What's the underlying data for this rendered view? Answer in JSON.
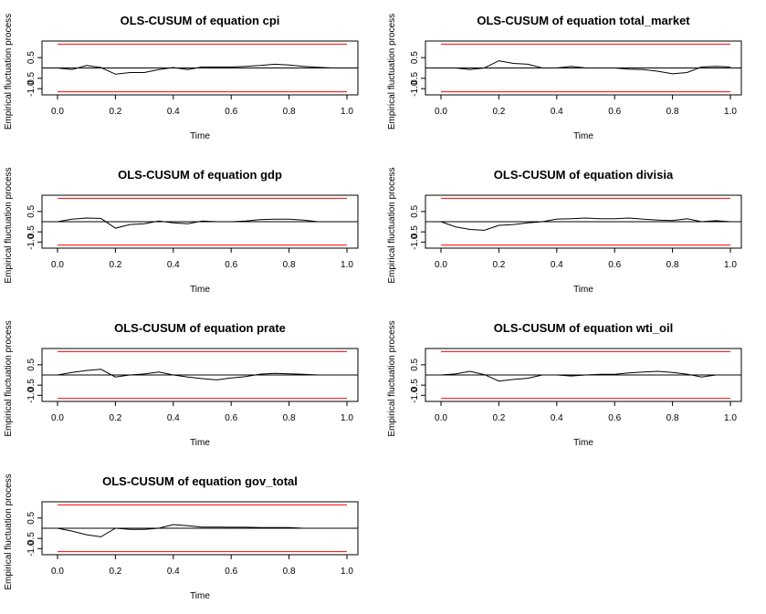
{
  "chart_data": [
    {
      "type": "line",
      "title": "OLS-CUSUM of equation cpi",
      "xlabel": "Time",
      "ylabel": "Empirical fluctuation process",
      "xlim": [
        0,
        1
      ],
      "ylim": [
        -1.3,
        1.3
      ],
      "xticks": [
        "0.0",
        "0.2",
        "0.4",
        "0.6",
        "0.8",
        "1.0"
      ],
      "yticks": [
        "-1.0",
        "0.5",
        "0.5"
      ],
      "boundary": 1.15,
      "x": [
        0.0,
        0.05,
        0.1,
        0.15,
        0.2,
        0.25,
        0.3,
        0.35,
        0.4,
        0.45,
        0.5,
        0.55,
        0.6,
        0.65,
        0.7,
        0.75,
        0.8,
        0.85,
        0.9,
        0.95,
        1.0
      ],
      "y": [
        0.0,
        -0.08,
        0.12,
        0.02,
        -0.3,
        -0.22,
        -0.22,
        -0.08,
        0.02,
        -0.08,
        0.05,
        0.05,
        0.05,
        0.08,
        0.12,
        0.18,
        0.14,
        0.08,
        0.03,
        0.0,
        0.0
      ]
    },
    {
      "type": "line",
      "title": "OLS-CUSUM of equation total_market",
      "xlabel": "Time",
      "ylabel": "Empirical fluctuation process",
      "xlim": [
        0,
        1
      ],
      "ylim": [
        -1.3,
        1.3
      ],
      "xticks": [
        "0.0",
        "0.2",
        "0.4",
        "0.6",
        "0.8",
        "1.0"
      ],
      "yticks": [
        "-1.0",
        "0.5",
        "0.5"
      ],
      "boundary": 1.15,
      "x": [
        0.0,
        0.05,
        0.1,
        0.15,
        0.2,
        0.25,
        0.3,
        0.35,
        0.4,
        0.45,
        0.5,
        0.55,
        0.6,
        0.65,
        0.7,
        0.75,
        0.8,
        0.85,
        0.9,
        0.95,
        1.0
      ],
      "y": [
        0.0,
        0.0,
        -0.08,
        0.0,
        0.35,
        0.22,
        0.18,
        0.0,
        0.0,
        0.08,
        0.0,
        0.0,
        0.0,
        -0.06,
        -0.08,
        -0.16,
        -0.28,
        -0.22,
        0.05,
        0.08,
        0.05
      ]
    },
    {
      "type": "line",
      "title": "OLS-CUSUM of equation gdp",
      "xlabel": "Time",
      "ylabel": "Empirical fluctuation process",
      "xlim": [
        0,
        1
      ],
      "ylim": [
        -1.3,
        1.3
      ],
      "xticks": [
        "0.0",
        "0.2",
        "0.4",
        "0.6",
        "0.8",
        "1.0"
      ],
      "yticks": [
        "-1.0",
        "0.5",
        "0.5"
      ],
      "boundary": 1.15,
      "x": [
        0.0,
        0.05,
        0.1,
        0.15,
        0.2,
        0.25,
        0.3,
        0.35,
        0.4,
        0.45,
        0.5,
        0.55,
        0.6,
        0.65,
        0.7,
        0.75,
        0.8,
        0.85,
        0.9,
        0.95,
        1.0
      ],
      "y": [
        0.0,
        0.12,
        0.18,
        0.16,
        -0.32,
        -0.14,
        -0.1,
        0.03,
        -0.06,
        -0.1,
        0.03,
        0.0,
        0.0,
        0.03,
        0.1,
        0.12,
        0.12,
        0.08,
        0.0,
        0.0,
        0.0
      ]
    },
    {
      "type": "line",
      "title": "OLS-CUSUM of equation divisia",
      "xlabel": "Time",
      "ylabel": "Empirical fluctuation process",
      "xlim": [
        0,
        1
      ],
      "ylim": [
        -1.3,
        1.3
      ],
      "xticks": [
        "0.0",
        "0.2",
        "0.4",
        "0.6",
        "0.8",
        "1.0"
      ],
      "yticks": [
        "-1.0",
        "0.5",
        "0.5"
      ],
      "boundary": 1.15,
      "x": [
        0.0,
        0.05,
        0.1,
        0.15,
        0.2,
        0.25,
        0.3,
        0.35,
        0.4,
        0.45,
        0.5,
        0.55,
        0.6,
        0.65,
        0.7,
        0.75,
        0.8,
        0.85,
        0.9,
        0.95,
        1.0
      ],
      "y": [
        0.0,
        -0.25,
        -0.38,
        -0.42,
        -0.18,
        -0.14,
        -0.06,
        0.0,
        0.13,
        0.15,
        0.18,
        0.15,
        0.15,
        0.18,
        0.12,
        0.08,
        0.06,
        0.15,
        0.0,
        0.05,
        0.0
      ]
    },
    {
      "type": "line",
      "title": "OLS-CUSUM of equation prate",
      "xlabel": "Time",
      "ylabel": "Empirical fluctuation process",
      "xlim": [
        0,
        1
      ],
      "ylim": [
        -1.3,
        1.3
      ],
      "xticks": [
        "0.0",
        "0.2",
        "0.4",
        "0.6",
        "0.8",
        "1.0"
      ],
      "yticks": [
        "-1.0",
        "0.5",
        "0.5"
      ],
      "boundary": 1.15,
      "x": [
        0.0,
        0.05,
        0.1,
        0.15,
        0.2,
        0.25,
        0.3,
        0.35,
        0.4,
        0.45,
        0.5,
        0.55,
        0.6,
        0.65,
        0.7,
        0.75,
        0.8,
        0.85,
        0.9,
        0.95,
        1.0
      ],
      "y": [
        0.0,
        0.12,
        0.22,
        0.28,
        -0.1,
        0.0,
        0.05,
        0.15,
        0.0,
        -0.1,
        -0.18,
        -0.24,
        -0.15,
        -0.08,
        0.04,
        0.08,
        0.06,
        0.03,
        0.0,
        0.0,
        0.0
      ]
    },
    {
      "type": "line",
      "title": "OLS-CUSUM of equation wti_oil",
      "xlabel": "Time",
      "ylabel": "Empirical fluctuation process",
      "xlim": [
        0,
        1
      ],
      "ylim": [
        -1.3,
        1.3
      ],
      "xticks": [
        "0.0",
        "0.2",
        "0.4",
        "0.6",
        "0.8",
        "1.0"
      ],
      "yticks": [
        "-1.0",
        "0.5",
        "0.5"
      ],
      "boundary": 1.15,
      "x": [
        0.0,
        0.05,
        0.1,
        0.15,
        0.2,
        0.25,
        0.3,
        0.35,
        0.4,
        0.45,
        0.5,
        0.55,
        0.6,
        0.65,
        0.7,
        0.75,
        0.8,
        0.85,
        0.9,
        0.95,
        1.0
      ],
      "y": [
        0.0,
        0.05,
        0.18,
        0.02,
        -0.3,
        -0.22,
        -0.16,
        0.0,
        0.0,
        -0.05,
        0.0,
        0.03,
        0.03,
        0.1,
        0.15,
        0.18,
        0.12,
        0.04,
        -0.1,
        0.0,
        0.0
      ]
    },
    {
      "type": "line",
      "title": "OLS-CUSUM of equation gov_total",
      "xlabel": "Time",
      "ylabel": "Empirical fluctuation process",
      "xlim": [
        0,
        1
      ],
      "ylim": [
        -1.3,
        1.3
      ],
      "xticks": [
        "0.0",
        "0.2",
        "0.4",
        "0.6",
        "0.8",
        "1.0"
      ],
      "yticks": [
        "-1.0",
        "0.5",
        "0.5"
      ],
      "boundary": 1.15,
      "x": [
        0.0,
        0.05,
        0.1,
        0.15,
        0.2,
        0.25,
        0.3,
        0.35,
        0.4,
        0.45,
        0.5,
        0.55,
        0.6,
        0.65,
        0.7,
        0.75,
        0.8,
        0.85,
        0.9,
        0.95,
        1.0
      ],
      "y": [
        0.0,
        -0.14,
        -0.32,
        -0.42,
        0.0,
        -0.06,
        -0.06,
        0.0,
        0.18,
        0.12,
        0.06,
        0.06,
        0.05,
        0.05,
        0.03,
        0.03,
        0.03,
        0.0,
        0.0,
        0.0,
        0.0
      ]
    }
  ],
  "colors": {
    "boundary": "#ff0000",
    "series": "#000000",
    "zero": "#000000",
    "frame": "#000000"
  }
}
